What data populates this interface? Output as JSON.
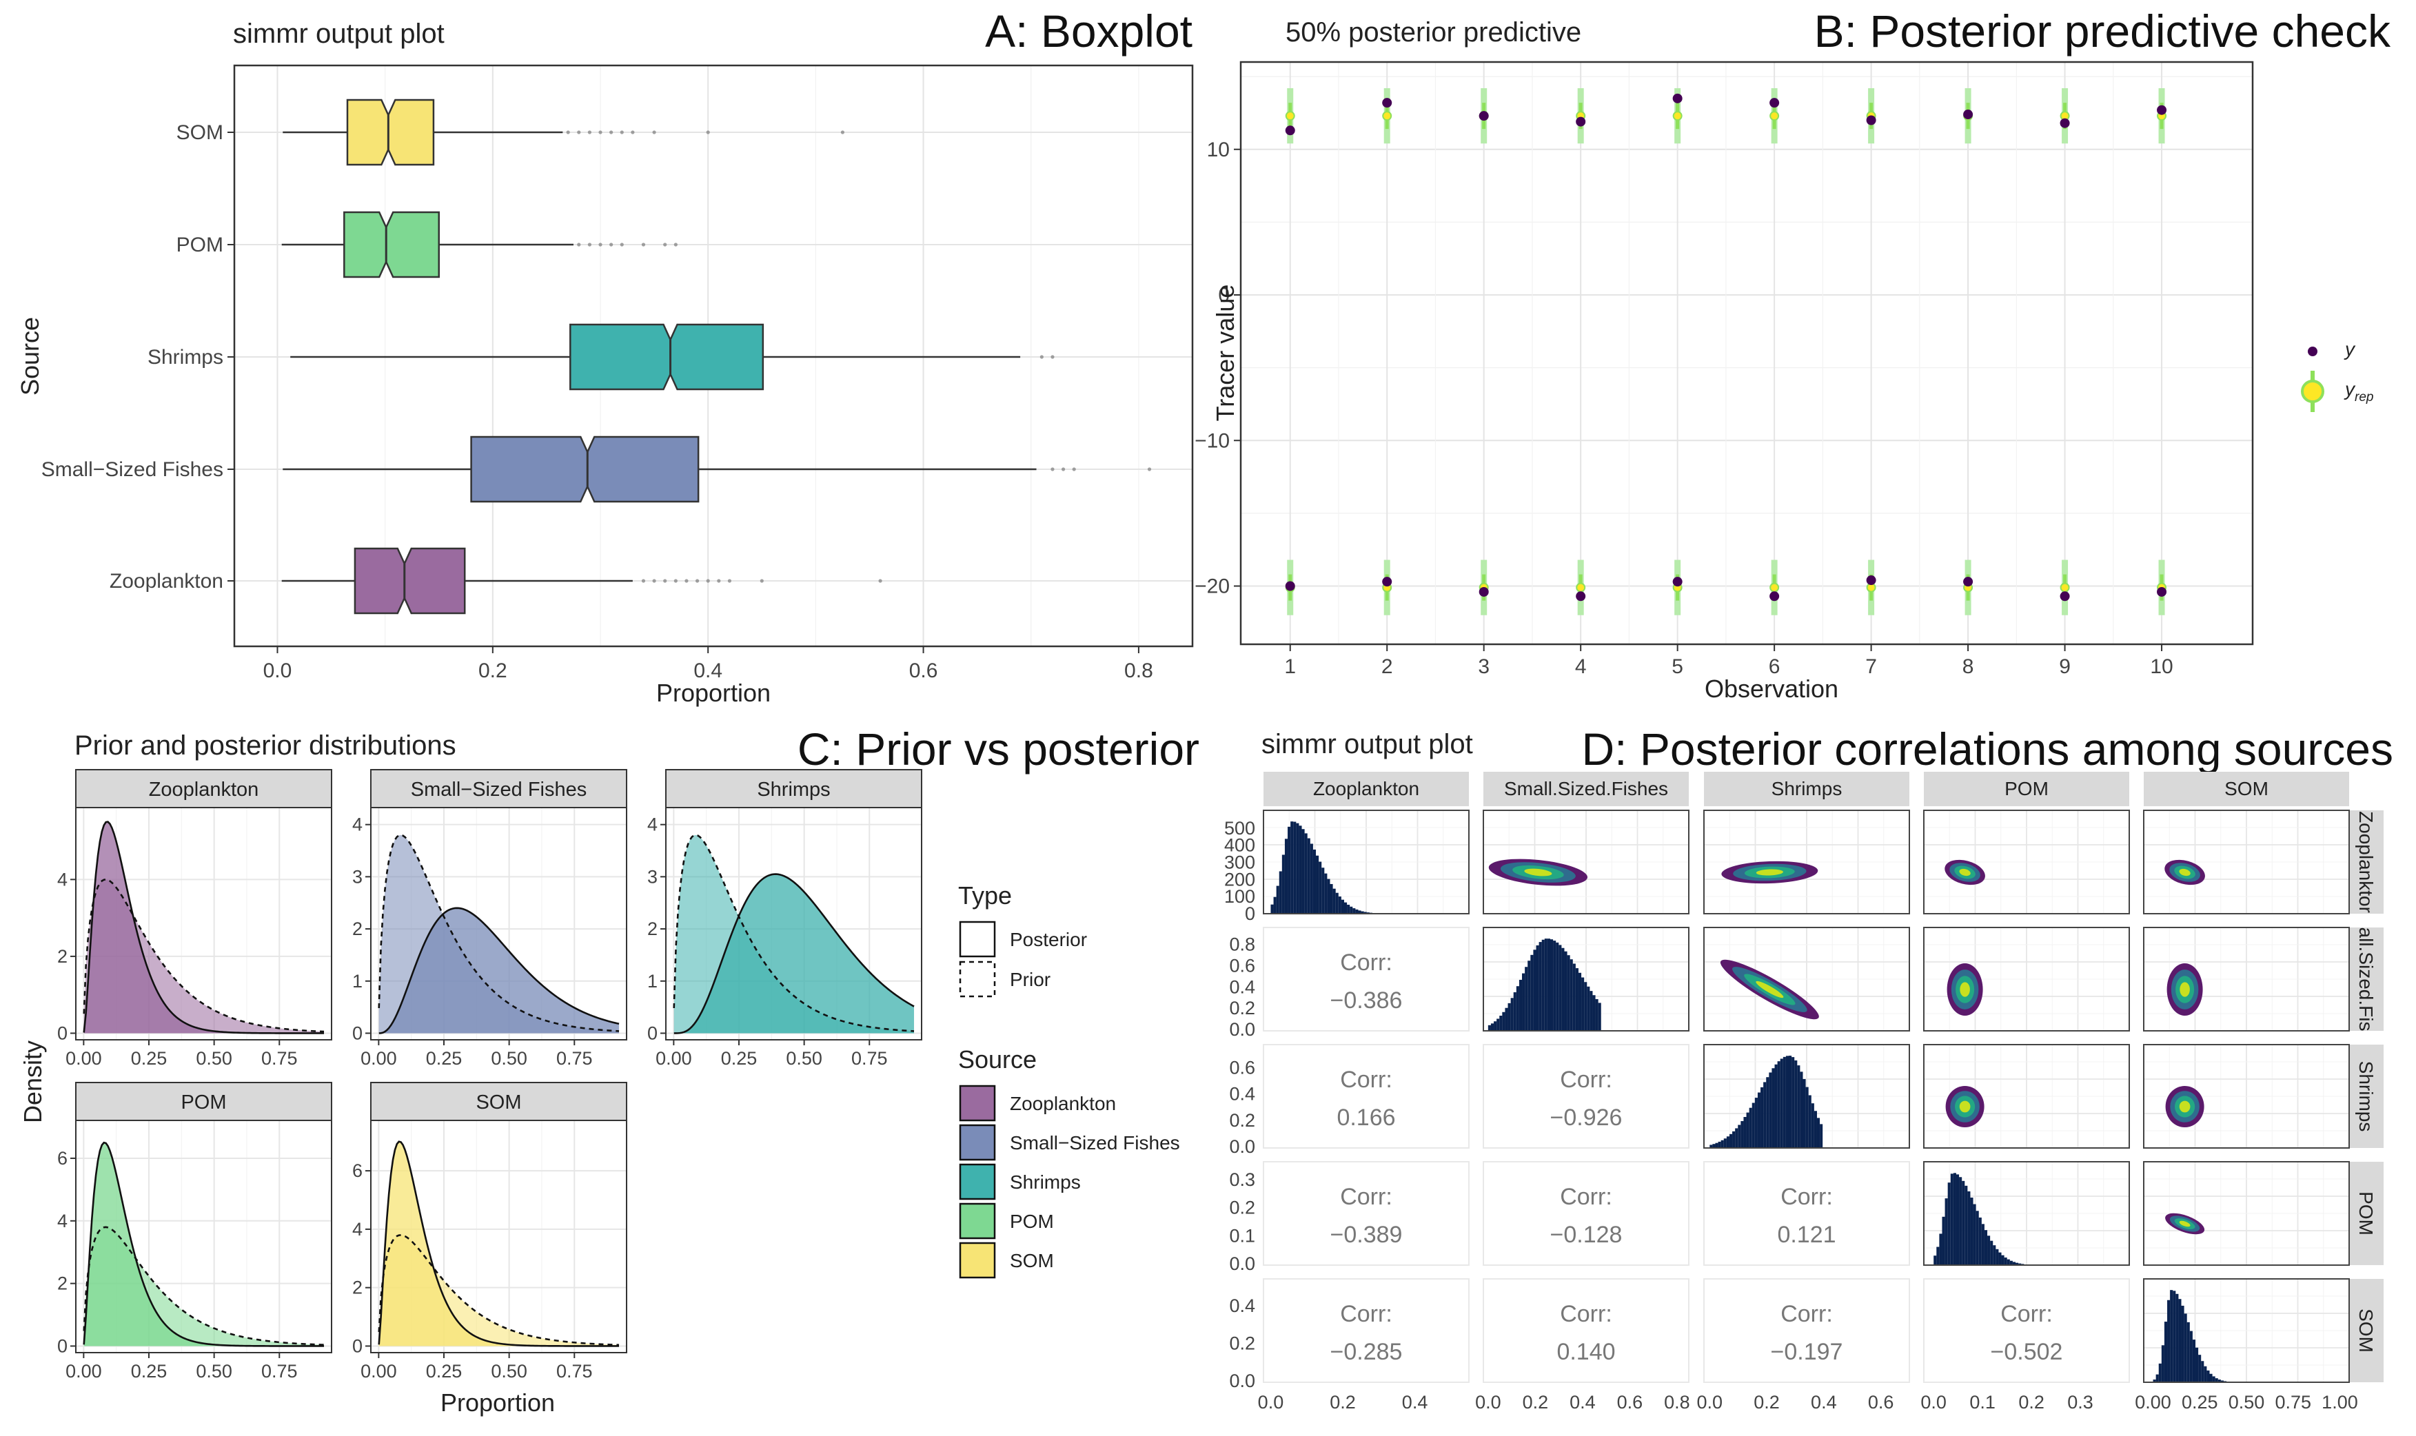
{
  "colors": {
    "Zooplankton": "#9a6b9f",
    "Small-Sized Fishes": "#7a8cb8",
    "Shrimps": "#3fb2ae",
    "POM": "#7ed892",
    "SOM": "#f7e475",
    "y": "#440154",
    "yrep": "#8ee05b",
    "yrep_point": "#fde725",
    "hist": "#0a2350"
  },
  "panelA": {
    "label": "A: Boxplot",
    "subtitle": "simmr output plot",
    "xlabel": "Proportion",
    "ylabel": "Source",
    "xticks": [
      "0.0",
      "0.2",
      "0.4",
      "0.6",
      "0.8"
    ],
    "chart_data": {
      "type": "boxplot",
      "categories": [
        "SOM",
        "POM",
        "Shrimps",
        "Small−Sized Fishes",
        "Zooplankton"
      ],
      "boxes": [
        {
          "min": 0.005,
          "q1": 0.065,
          "median": 0.103,
          "q3": 0.145,
          "whisker_hi": 0.265,
          "outliers": [
            0.27,
            0.28,
            0.29,
            0.3,
            0.31,
            0.32,
            0.33,
            0.35,
            0.4,
            0.525
          ]
        },
        {
          "min": 0.004,
          "q1": 0.062,
          "median": 0.101,
          "q3": 0.15,
          "whisker_hi": 0.275,
          "outliers": [
            0.28,
            0.29,
            0.3,
            0.31,
            0.32,
            0.34,
            0.36,
            0.37
          ]
        },
        {
          "min": 0.012,
          "q1": 0.272,
          "median": 0.365,
          "q3": 0.451,
          "whisker_hi": 0.69,
          "outliers": [
            0.71,
            0.72
          ]
        },
        {
          "min": 0.005,
          "q1": 0.18,
          "median": 0.288,
          "q3": 0.391,
          "whisker_hi": 0.705,
          "outliers": [
            0.72,
            0.73,
            0.74,
            0.81
          ]
        },
        {
          "min": 0.004,
          "q1": 0.072,
          "median": 0.118,
          "q3": 0.174,
          "whisker_hi": 0.33,
          "outliers": [
            0.34,
            0.35,
            0.36,
            0.37,
            0.38,
            0.39,
            0.4,
            0.41,
            0.42,
            0.45,
            0.56
          ]
        }
      ],
      "xlim": [
        -0.04,
        0.85
      ]
    }
  },
  "panelB": {
    "label": "B: Posterior predictive check",
    "subtitle": "50% posterior predictive",
    "xlabel": "Observation",
    "ylabel": "Tracer value",
    "legend_y": "y",
    "legend_yrep": "y",
    "legend_yrep_sub": "rep",
    "xticks": [
      "1",
      "2",
      "3",
      "4",
      "5",
      "6",
      "7",
      "8",
      "9",
      "10"
    ],
    "yticks": [
      "−20",
      "−10",
      "0",
      "10"
    ],
    "chart_data": {
      "type": "scatter",
      "ylim": [
        -24,
        16
      ],
      "observations": [
        1,
        2,
        3,
        4,
        5,
        6,
        7,
        8,
        9,
        10
      ],
      "y_high": [
        11.3,
        13.2,
        12.3,
        11.9,
        13.5,
        13.2,
        12.0,
        12.4,
        11.8,
        12.7
      ],
      "yrep_high": [
        12.3,
        12.3,
        12.3,
        12.3,
        12.3,
        12.3,
        12.3,
        12.3,
        12.3,
        12.3
      ],
      "y_low": [
        -20.0,
        -19.7,
        -20.4,
        -20.7,
        -19.7,
        -20.7,
        -19.6,
        -19.7,
        -20.7,
        -20.4
      ],
      "yrep_low": [
        -20.1,
        -20.1,
        -20.1,
        -20.1,
        -20.1,
        -20.1,
        -20.1,
        -20.1,
        -20.1,
        -20.1
      ]
    }
  },
  "panelC": {
    "label": "C: Prior vs posterior",
    "subtitle": "Prior and posterior distributions",
    "xlabel": "Proportion",
    "ylabel": "Density",
    "legend_type_title": "Type",
    "legend_type": [
      "Posterior",
      "Prior"
    ],
    "legend_source_title": "Source",
    "legend_source": [
      "Zooplankton",
      "Small−Sized Fishes",
      "Shrimps",
      "POM",
      "SOM"
    ],
    "xticks": [
      "0.00",
      "0.25",
      "0.50",
      "0.75"
    ],
    "chart_data": {
      "type": "area",
      "facets": [
        {
          "name": "Zooplankton",
          "ymax": 5.7,
          "yticks": [
            "0",
            "2",
            "4"
          ],
          "posterior_mode": 0.09,
          "posterior_peak": 5.5,
          "prior_peak": 4.0
        },
        {
          "name": "Small-Sized Fishes",
          "ymax": 4.2,
          "yticks": [
            "0",
            "1",
            "2",
            "3",
            "4"
          ],
          "posterior_mode": 0.3,
          "posterior_peak": 2.4,
          "prior_peak": 3.8
        },
        {
          "name": "Shrimps",
          "ymax": 4.2,
          "yticks": [
            "0",
            "1",
            "2",
            "3",
            "4"
          ],
          "posterior_mode": 0.39,
          "posterior_peak": 3.05,
          "prior_peak": 3.8
        },
        {
          "name": "POM",
          "ymax": 7.0,
          "yticks": [
            "0",
            "2",
            "4",
            "6"
          ],
          "posterior_mode": 0.08,
          "posterior_peak": 6.5,
          "prior_peak": 3.8
        },
        {
          "name": "SOM",
          "ymax": 7.5,
          "yticks": [
            "0",
            "2",
            "4",
            "6"
          ],
          "posterior_mode": 0.08,
          "posterior_peak": 7.0,
          "prior_peak": 3.8
        }
      ]
    }
  },
  "panelD": {
    "label": "D: Posterior correlations among sources",
    "subtitle": "simmr output plot",
    "sources": [
      "Zooplankton",
      "Small.Sized.Fishes",
      "Shrimps",
      "POM",
      "SOM"
    ],
    "row_strips": [
      "Zooplanktor",
      "all.Sized.Fis",
      "Shrimps",
      "POM",
      "SOM"
    ],
    "corr_label": "Corr:",
    "chart_data": {
      "type": "pairs",
      "correlations": [
        {
          "row": 1,
          "col": 0,
          "value": "−0.386"
        },
        {
          "row": 2,
          "col": 0,
          "value": "0.166"
        },
        {
          "row": 2,
          "col": 1,
          "value": "−0.926"
        },
        {
          "row": 3,
          "col": 0,
          "value": "−0.389"
        },
        {
          "row": 3,
          "col": 1,
          "value": "−0.128"
        },
        {
          "row": 3,
          "col": 2,
          "value": "0.121"
        },
        {
          "row": 4,
          "col": 0,
          "value": "−0.285"
        },
        {
          "row": 4,
          "col": 1,
          "value": "0.140"
        },
        {
          "row": 4,
          "col": 2,
          "value": "−0.197"
        },
        {
          "row": 4,
          "col": 3,
          "value": "−0.502"
        }
      ],
      "diag_hist": [
        {
          "xlim": [
            -0.02,
            0.55
          ],
          "ymax": 540,
          "yticks": [
            "0",
            "100",
            "200",
            "300",
            "400",
            "500"
          ],
          "mode": 0.06,
          "sd": 0.045,
          "skew": 1.2
        },
        {
          "xlim": [
            -0.02,
            0.85
          ],
          "ymax": 0.9,
          "yticks": [
            "0.0",
            "0.2",
            "0.4",
            "0.6",
            "0.8"
          ],
          "mode": 0.25,
          "sd": 0.12,
          "skew": 0.4
        },
        {
          "xlim": [
            -0.02,
            0.7
          ],
          "ymax": 0.72,
          "yticks": [
            "0.0",
            "0.2",
            "0.4",
            "0.6"
          ],
          "mode": 0.28,
          "sd": 0.09,
          "skew": -0.5
        },
        {
          "xlim": [
            -0.02,
            0.4
          ],
          "ymax": 0.37,
          "yticks": [
            "0.0",
            "0.1",
            "0.2",
            "0.3"
          ],
          "mode": 0.04,
          "sd": 0.03,
          "skew": 1.2
        },
        {
          "xlim": [
            -0.05,
            1.05
          ],
          "ymax": 0.5,
          "yticks": [
            "0.0",
            "0.2",
            "0.4"
          ],
          "mode": 0.1,
          "sd": 0.06,
          "skew": 1.2
        }
      ],
      "bottom_xticks": [
        [
          "0.0",
          "0.2",
          "0.4"
        ],
        [
          "0.0",
          "0.2",
          "0.4",
          "0.6",
          "0.8"
        ],
        [
          "0.0",
          "0.2",
          "0.4",
          "0.6"
        ],
        [
          "0.0",
          "0.1",
          "0.2",
          "0.3"
        ],
        [
          "0.00",
          "0.25",
          "0.50",
          "0.75",
          "1.00"
        ]
      ],
      "bottom_xvals": [
        [
          0.0,
          0.2,
          0.4
        ],
        [
          0.0,
          0.2,
          0.4,
          0.6,
          0.8
        ],
        [
          0.0,
          0.2,
          0.4,
          0.6
        ],
        [
          0.0,
          0.1,
          0.2,
          0.3
        ],
        [
          0.0,
          0.25,
          0.5,
          0.75,
          1.0
        ]
      ]
    }
  }
}
